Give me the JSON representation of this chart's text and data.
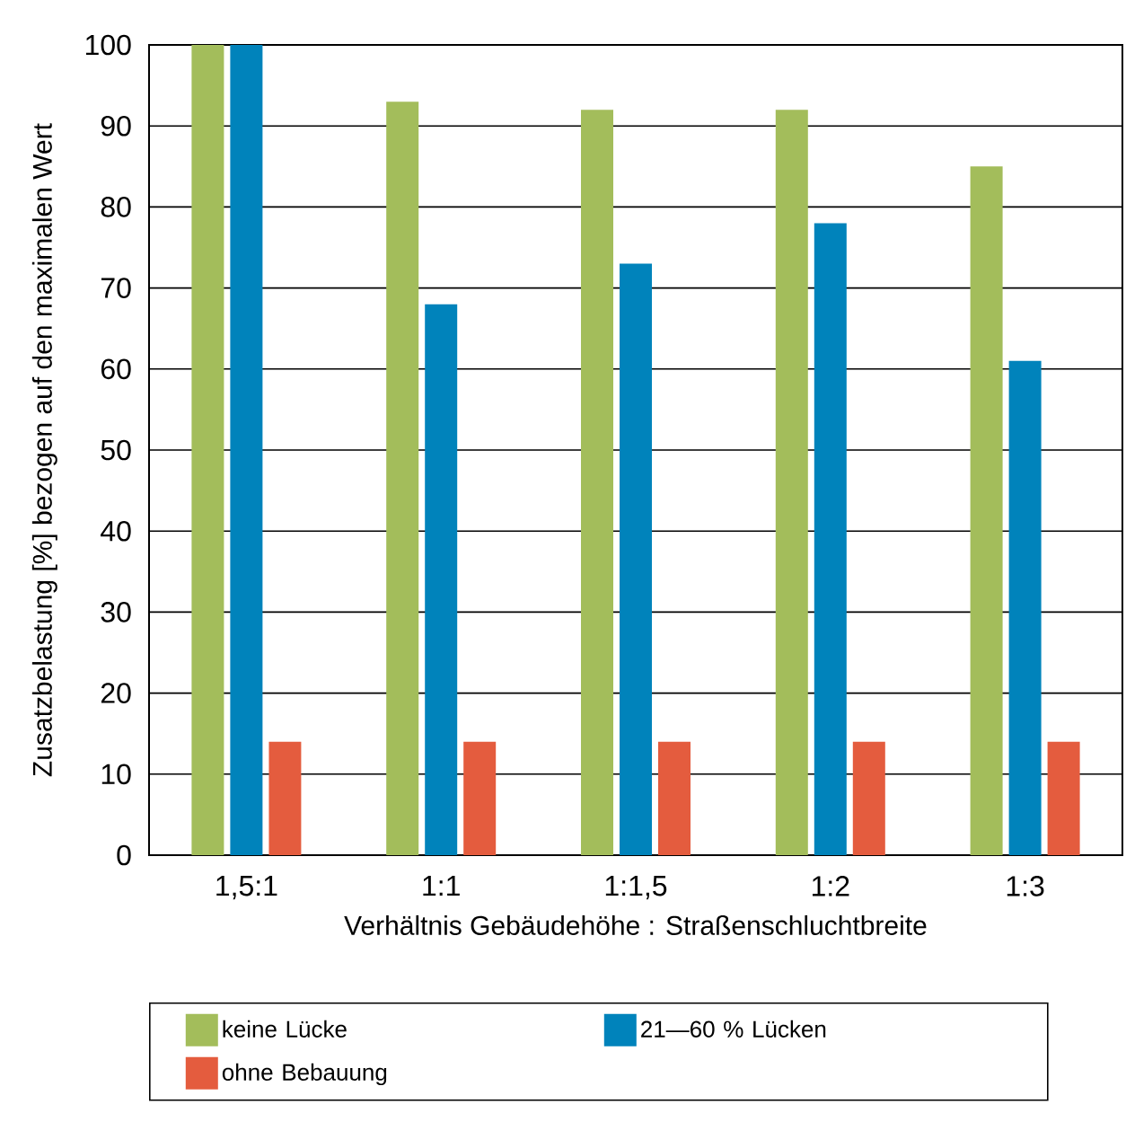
{
  "chart_data": {
    "type": "bar",
    "xlabel": "Verhältnis Gebäudehöhe : Straßenschluchtbreite",
    "ylabel": "Zusatzbelastung [%] bezogen auf den maximalen Wert",
    "categories": [
      "1,5:1",
      "1:1",
      "1:1,5",
      "1:2",
      "1:3"
    ],
    "series": [
      {
        "name": "keine Lücke",
        "color": "#a3bd5b",
        "values": [
          100,
          93,
          92,
          92,
          85
        ]
      },
      {
        "name": "21—60 % Lücken",
        "color": "#0083bb",
        "values": [
          100,
          68,
          73,
          78,
          61
        ]
      },
      {
        "name": "ohne Bebauung",
        "color": "#e45c3e",
        "values": [
          14,
          14,
          14,
          14,
          14
        ]
      }
    ],
    "ylim": [
      0,
      100
    ],
    "yticks": [
      0,
      10,
      20,
      30,
      40,
      50,
      60,
      70,
      80,
      90,
      100
    ],
    "grid": "y",
    "legend": "bottom"
  }
}
